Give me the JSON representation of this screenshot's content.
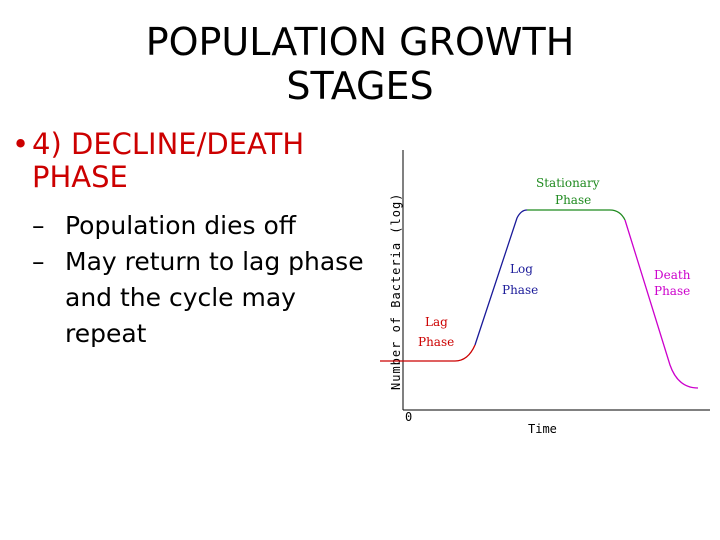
{
  "title": {
    "line1": "POPULATION GROWTH",
    "line2": "STAGES"
  },
  "bullet": {
    "marker": "•",
    "text_line1": "4) DECLINE/DEATH",
    "text_line2": "PHASE",
    "color": "#cc0000"
  },
  "sub_items": [
    {
      "marker": "–",
      "line1": "Population dies off",
      "line2": ""
    },
    {
      "marker": "–",
      "line1": "May return to lag phase",
      "line2": "and the cycle may",
      "line3": "repeat"
    }
  ],
  "diagram": {
    "y_label": "Number of Bacteria (log)",
    "x_label": "Time",
    "origin_label": "0",
    "phases": {
      "lag": {
        "line1": "Lag",
        "line2": "Phase",
        "color": "#cc0000"
      },
      "log": {
        "line1": "Log",
        "line2": "Phase",
        "color": "#1a1a99"
      },
      "stationary": {
        "line1": "Stationary",
        "line2": "Phase",
        "color": "#1f8a1f"
      },
      "death": {
        "line1": "Death",
        "line2": "Phase",
        "color": "#cc00cc"
      }
    }
  }
}
